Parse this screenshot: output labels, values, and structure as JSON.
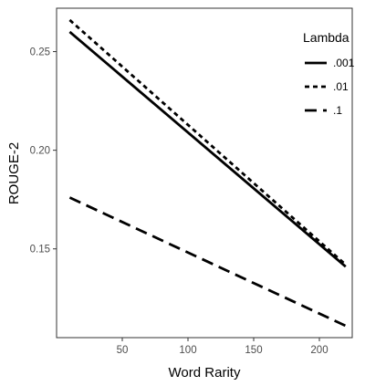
{
  "chart_data": {
    "type": "line",
    "xlabel": "Word Rarity",
    "ylabel": "ROUGE-2",
    "xlim": [
      0,
      225
    ],
    "ylim": [
      0.105,
      0.272
    ],
    "x_ticks": [
      50,
      100,
      150,
      200
    ],
    "x_tick_labels": [
      "50",
      "100",
      "150",
      "200"
    ],
    "y_ticks": [
      0.15,
      0.2,
      0.25
    ],
    "y_tick_labels": [
      "0.15",
      "0.20",
      "0.25"
    ],
    "grid": false,
    "legend": {
      "title": "Lambda",
      "position": "top-right"
    },
    "series": [
      {
        "name": ".001",
        "linetype": "solid",
        "x": [
          10,
          220
        ],
        "y": [
          0.26,
          0.141
        ]
      },
      {
        "name": ".01",
        "linetype": "dotted",
        "x": [
          10,
          220
        ],
        "y": [
          0.266,
          0.142
        ]
      },
      {
        "name": ".1",
        "linetype": "dashed",
        "x": [
          10,
          220
        ],
        "y": [
          0.176,
          0.111
        ]
      }
    ],
    "colors": {
      "line": "#000000",
      "panel_border": "#333333",
      "tick_text": "#4d4d4d"
    }
  }
}
